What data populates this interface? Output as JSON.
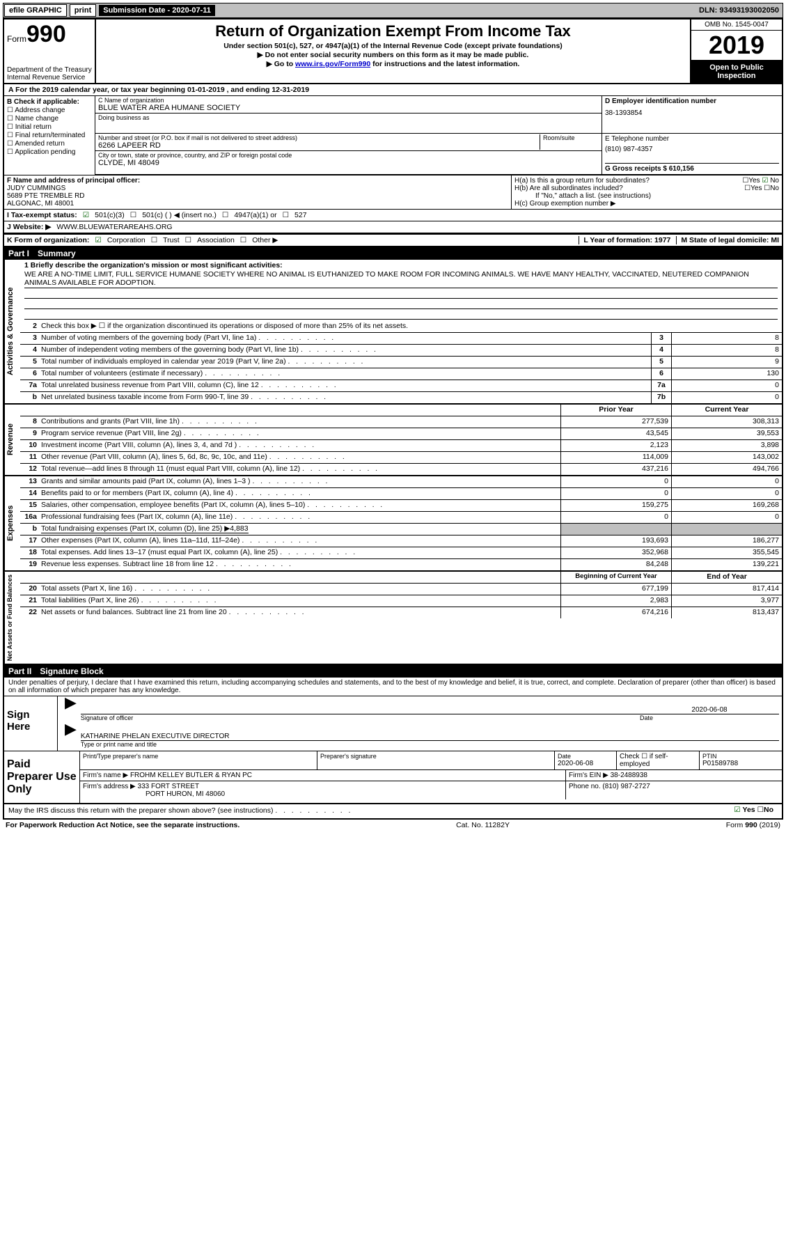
{
  "topbar": {
    "efile": "efile GRAPHIC",
    "print": "print",
    "sub_label": "Submission Date - 2020-07-11",
    "dln": "DLN: 93493193002050"
  },
  "header": {
    "form_prefix": "Form",
    "form_num": "990",
    "dept": "Department of the Treasury",
    "irs": "Internal Revenue Service",
    "title": "Return of Organization Exempt From Income Tax",
    "sub1": "Under section 501(c), 527, or 4947(a)(1) of the Internal Revenue Code (except private foundations)",
    "sub2": "▶ Do not enter social security numbers on this form as it may be made public.",
    "sub3_pre": "▶ Go to ",
    "sub3_link": "www.irs.gov/Form990",
    "sub3_post": " for instructions and the latest information.",
    "omb": "OMB No. 1545-0047",
    "year": "2019",
    "inspect1": "Open to Public",
    "inspect2": "Inspection"
  },
  "rowA": "A For the 2019 calendar year, or tax year beginning 01-01-2019    , and ending 12-31-2019",
  "boxB": {
    "label": "B Check if applicable:",
    "opts": [
      "Address change",
      "Name change",
      "Initial return",
      "Final return/terminated",
      "Amended return",
      "Application pending"
    ]
  },
  "boxC": {
    "name_label": "C Name of organization",
    "name": "BLUE WATER AREA HUMANE SOCIETY",
    "dba_label": "Doing business as",
    "dba": "",
    "addr_label": "Number and street (or P.O. box if mail is not delivered to street address)",
    "room_label": "Room/suite",
    "addr": "6266 LAPEER RD",
    "city_label": "City or town, state or province, country, and ZIP or foreign postal code",
    "city": "CLYDE, MI  48049"
  },
  "boxD": {
    "label": "D Employer identification number",
    "val": "38-1393854"
  },
  "boxE": {
    "label": "E Telephone number",
    "val": "(810) 987-4357"
  },
  "boxG": {
    "label": "G Gross receipts $ 610,156"
  },
  "boxF": {
    "label": "F  Name and address of principal officer:",
    "name": "JUDY CUMMINGS",
    "addr1": "5689 PTE TREMBLE RD",
    "addr2": "ALGONAC, MI  48001"
  },
  "boxH": {
    "ha": "H(a)  Is this a group return for subordinates?",
    "hb": "H(b)  Are all subordinates included?",
    "hb_note": "If \"No,\" attach a list. (see instructions)",
    "hc": "H(c)  Group exemption number ▶"
  },
  "taxStatus": {
    "label": "I  Tax-exempt status:",
    "o1": "501(c)(3)",
    "o2": "501(c) (   ) ◀ (insert no.)",
    "o3": "4947(a)(1) or",
    "o4": "527"
  },
  "website": {
    "label": "J  Website: ▶",
    "val": "WWW.BLUEWATERAREAHS.ORG"
  },
  "boxK": {
    "label": "K Form of organization:",
    "o1": "Corporation",
    "o2": "Trust",
    "o3": "Association",
    "o4": "Other ▶"
  },
  "boxL": "L Year of formation: 1977",
  "boxM": "M State of legal domicile: MI",
  "partI": {
    "label": "Part I",
    "title": "Summary"
  },
  "mission": {
    "q": "1  Briefly describe the organization's mission or most significant activities:",
    "text": "WE ARE A NO-TIME LIMIT, FULL SERVICE HUMANE SOCIETY WHERE NO ANIMAL IS EUTHANIZED TO MAKE ROOM FOR INCOMING ANIMALS. WE HAVE MANY HEALTHY, VACCINATED, NEUTERED COMPANION ANIMALS AVAILABLE FOR ADOPTION."
  },
  "line2": "Check this box ▶ ☐  if the organization discontinued its operations or disposed of more than 25% of its net assets.",
  "govRows": [
    {
      "n": "3",
      "d": "Number of voting members of the governing body (Part VI, line 1a)",
      "bn": "3",
      "v": "8"
    },
    {
      "n": "4",
      "d": "Number of independent voting members of the governing body (Part VI, line 1b)",
      "bn": "4",
      "v": "8"
    },
    {
      "n": "5",
      "d": "Total number of individuals employed in calendar year 2019 (Part V, line 2a)",
      "bn": "5",
      "v": "9"
    },
    {
      "n": "6",
      "d": "Total number of volunteers (estimate if necessary)",
      "bn": "6",
      "v": "130"
    },
    {
      "n": "7a",
      "d": "Total unrelated business revenue from Part VIII, column (C), line 12",
      "bn": "7a",
      "v": "0"
    },
    {
      "n": "b",
      "d": "Net unrelated business taxable income from Form 990-T, line 39",
      "bn": "7b",
      "v": "0"
    }
  ],
  "colHdr": {
    "c1": "Prior Year",
    "c2": "Current Year"
  },
  "revRows": [
    {
      "n": "8",
      "d": "Contributions and grants (Part VIII, line 1h)",
      "c1": "277,539",
      "c2": "308,313"
    },
    {
      "n": "9",
      "d": "Program service revenue (Part VIII, line 2g)",
      "c1": "43,545",
      "c2": "39,553"
    },
    {
      "n": "10",
      "d": "Investment income (Part VIII, column (A), lines 3, 4, and 7d )",
      "c1": "2,123",
      "c2": "3,898"
    },
    {
      "n": "11",
      "d": "Other revenue (Part VIII, column (A), lines 5, 6d, 8c, 9c, 10c, and 11e)",
      "c1": "114,009",
      "c2": "143,002"
    },
    {
      "n": "12",
      "d": "Total revenue—add lines 8 through 11 (must equal Part VIII, column (A), line 12)",
      "c1": "437,216",
      "c2": "494,766"
    }
  ],
  "expRows": [
    {
      "n": "13",
      "d": "Grants and similar amounts paid (Part IX, column (A), lines 1–3 )",
      "c1": "0",
      "c2": "0"
    },
    {
      "n": "14",
      "d": "Benefits paid to or for members (Part IX, column (A), line 4)",
      "c1": "0",
      "c2": "0"
    },
    {
      "n": "15",
      "d": "Salaries, other compensation, employee benefits (Part IX, column (A), lines 5–10)",
      "c1": "159,275",
      "c2": "169,268"
    },
    {
      "n": "16a",
      "d": "Professional fundraising fees (Part IX, column (A), line 11e)",
      "c1": "0",
      "c2": "0"
    }
  ],
  "line16b": {
    "n": "b",
    "d": "Total fundraising expenses (Part IX, column (D), line 25) ▶4,883"
  },
  "expRows2": [
    {
      "n": "17",
      "d": "Other expenses (Part IX, column (A), lines 11a–11d, 11f–24e)",
      "c1": "193,693",
      "c2": "186,277"
    },
    {
      "n": "18",
      "d": "Total expenses. Add lines 13–17 (must equal Part IX, column (A), line 25)",
      "c1": "352,968",
      "c2": "355,545"
    },
    {
      "n": "19",
      "d": "Revenue less expenses. Subtract line 18 from line 12",
      "c1": "84,248",
      "c2": "139,221"
    }
  ],
  "naHdr": {
    "c1": "Beginning of Current Year",
    "c2": "End of Year"
  },
  "naRows": [
    {
      "n": "20",
      "d": "Total assets (Part X, line 16)",
      "c1": "677,199",
      "c2": "817,414"
    },
    {
      "n": "21",
      "d": "Total liabilities (Part X, line 26)",
      "c1": "2,983",
      "c2": "3,977"
    },
    {
      "n": "22",
      "d": "Net assets or fund balances. Subtract line 21 from line 20",
      "c1": "674,216",
      "c2": "813,437"
    }
  ],
  "partII": {
    "label": "Part II",
    "title": "Signature Block"
  },
  "sigText": "Under penalties of perjury, I declare that I have examined this return, including accompanying schedules and statements, and to the best of my knowledge and belief, it is true, correct, and complete. Declaration of preparer (other than officer) is based on all information of which preparer has any knowledge.",
  "sign": {
    "label": "Sign Here",
    "sig_of": "Signature of officer",
    "date_label": "Date",
    "date": "2020-06-08",
    "name": "KATHARINE PHELAN  EXECUTIVE DIRECTOR",
    "name_label": "Type or print name and title"
  },
  "paid": {
    "label": "Paid Preparer Use Only",
    "r1": {
      "c1": "Print/Type preparer's name",
      "c2": "Preparer's signature",
      "c3l": "Date",
      "c3": "2020-06-08",
      "c4": "Check ☐ if self-employed",
      "c5l": "PTIN",
      "c5": "P01589788"
    },
    "r2": {
      "l": "Firm's name     ▶",
      "v": "FROHM KELLEY BUTLER & RYAN PC",
      "einl": "Firm's EIN ▶",
      "ein": "38-2488938"
    },
    "r3": {
      "l": "Firm's address ▶",
      "v1": "333 FORT STREET",
      "v2": "PORT HURON, MI  48060",
      "phl": "Phone no.",
      "ph": "(810) 987-2727"
    }
  },
  "discuss": "May the IRS discuss this return with the preparer shown above? (see instructions)",
  "footer": {
    "left": "For Paperwork Reduction Act Notice, see the separate instructions.",
    "mid": "Cat. No. 11282Y",
    "right": "Form 990 (2019)"
  },
  "labels": {
    "yes": "Yes",
    "no": "No",
    "activities": "Activities & Governance",
    "revenue": "Revenue",
    "expenses": "Expenses",
    "netassets": "Net Assets or Fund Balances"
  }
}
